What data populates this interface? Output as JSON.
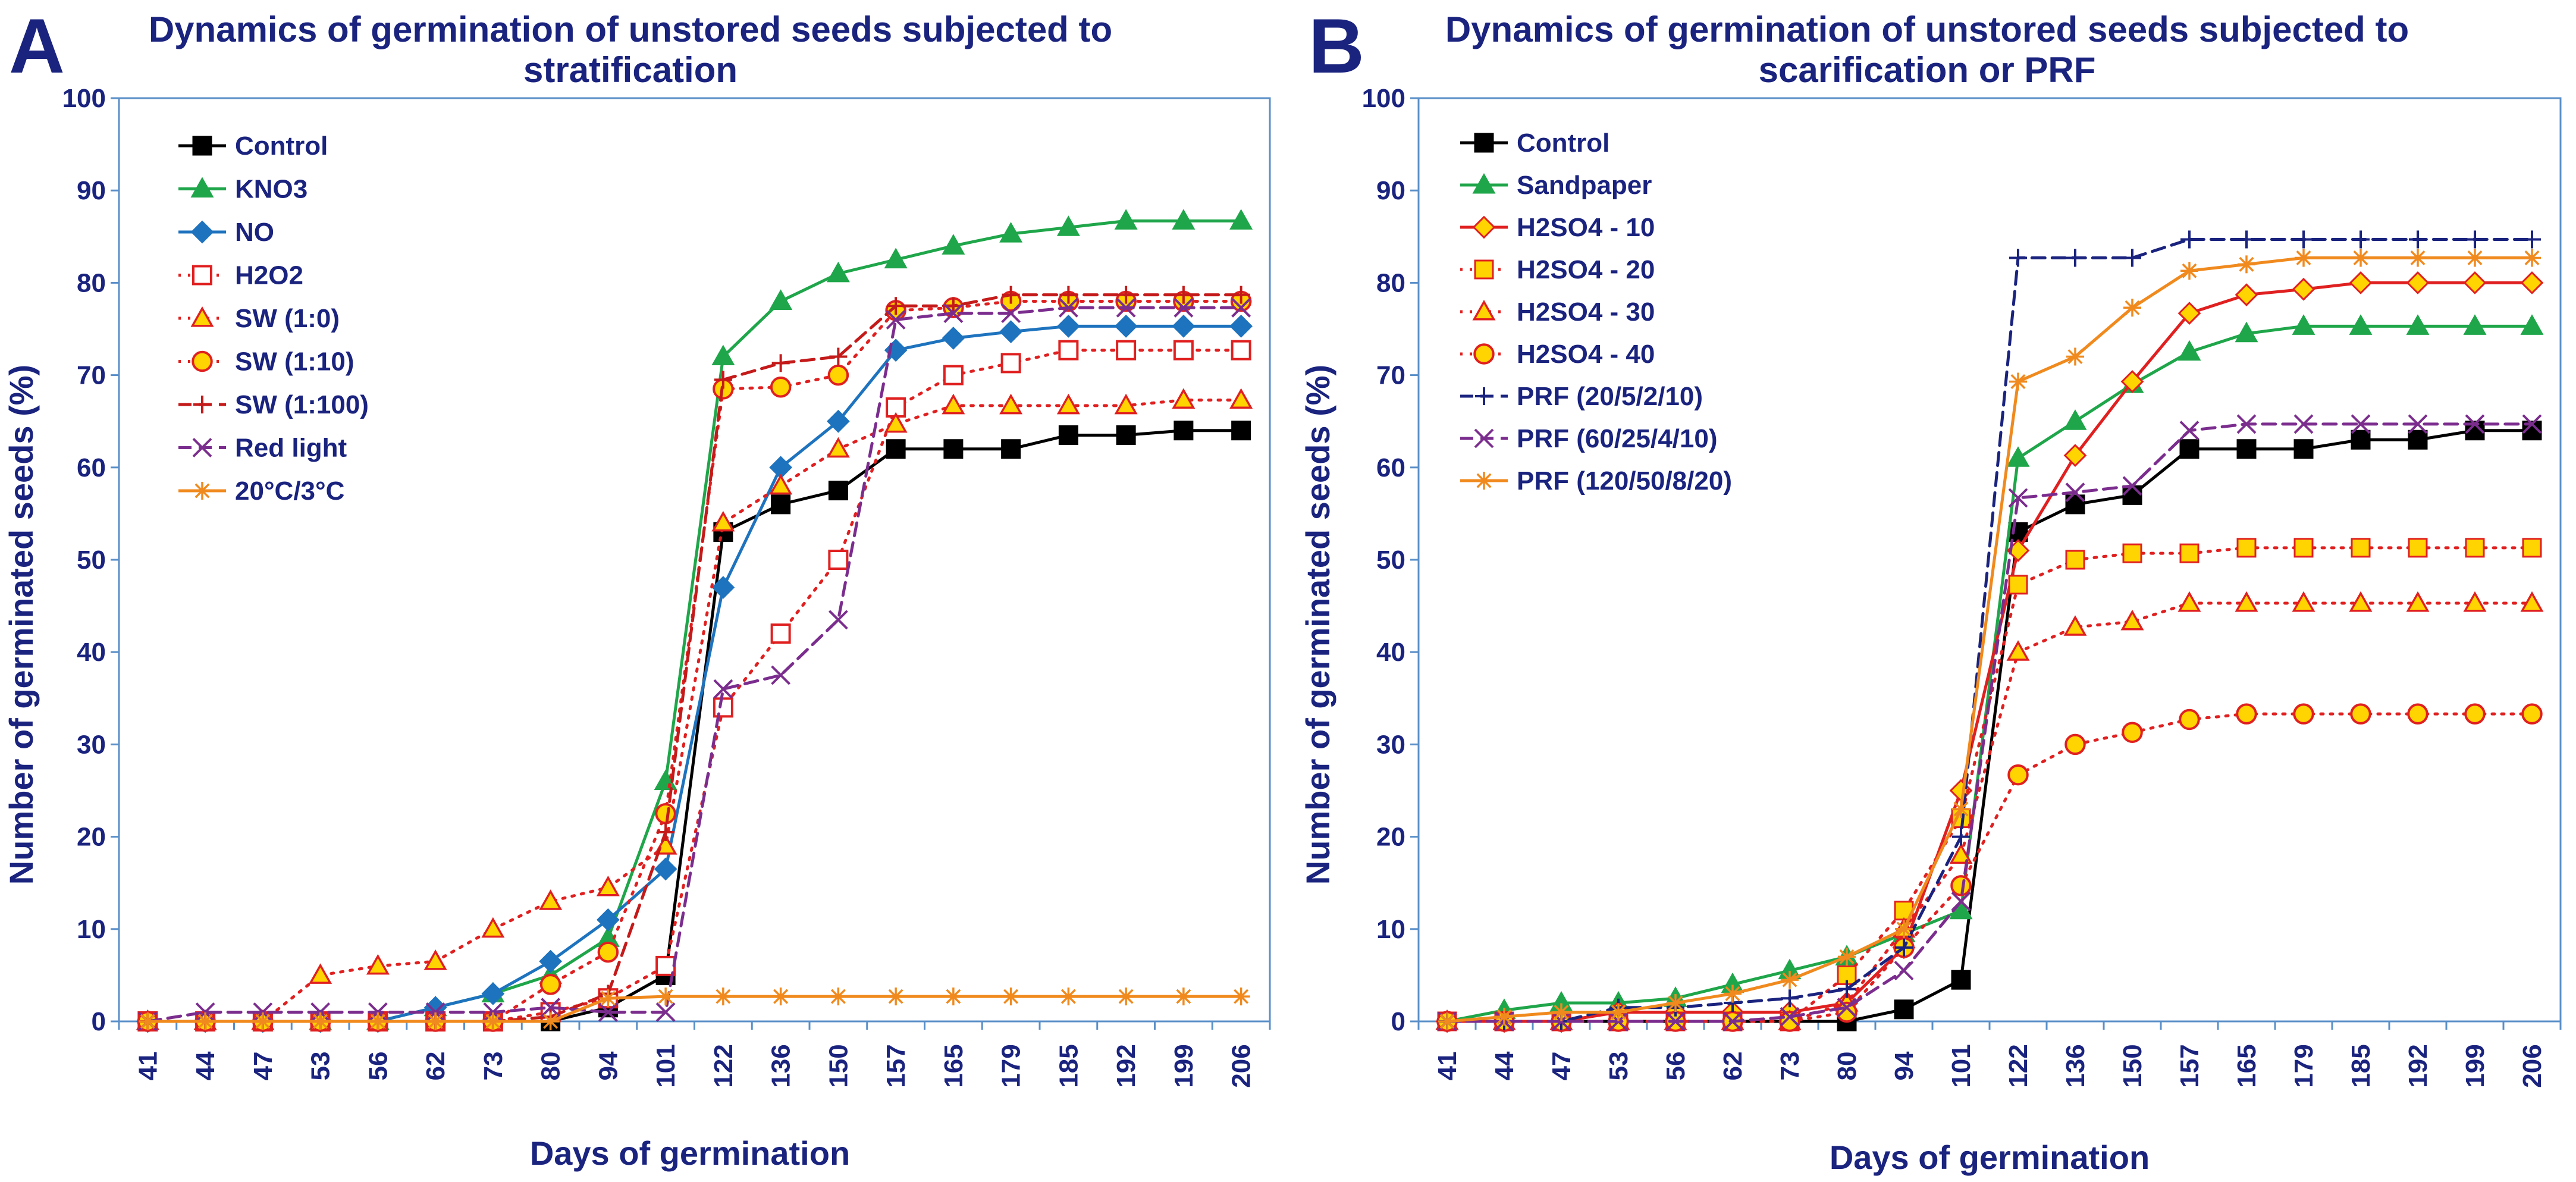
{
  "chart_data": [
    {
      "type": "line",
      "panel": "A",
      "title_lines": [
        "Dynamics of germination of unstored seeds subjected to",
        "stratification"
      ],
      "xlabel": "Days of germination",
      "ylabel": "Number of germinated seeds (%)",
      "ylim": [
        0,
        100
      ],
      "yticks": [
        "0",
        "10",
        "20",
        "30",
        "40",
        "50",
        "60",
        "70",
        "80",
        "90",
        "100"
      ],
      "categories": [
        "41",
        "44",
        "47",
        "53",
        "56",
        "62",
        "73",
        "80",
        "94",
        "101",
        "122",
        "136",
        "150",
        "157",
        "165",
        "179",
        "185",
        "192",
        "199",
        "206"
      ],
      "series": [
        {
          "name": "Control",
          "color": "#000000",
          "dash": "solid",
          "marker": "square",
          "fill": "#000000",
          "values": [
            0,
            0,
            0,
            0,
            0,
            0,
            0,
            0,
            1.5,
            5,
            53,
            56,
            57.5,
            62,
            62,
            62,
            63.5,
            63.5,
            64,
            64
          ]
        },
        {
          "name": "KNO3",
          "color": "#1fa64a",
          "dash": "solid",
          "marker": "triangle",
          "fill": "#1fa64a",
          "values": [
            0,
            0,
            0,
            0,
            0,
            1.5,
            3,
            5,
            9,
            26,
            72,
            78,
            81,
            82.5,
            84,
            85.3,
            86,
            86.7,
            86.7,
            86.7
          ]
        },
        {
          "name": "NO",
          "color": "#1e73be",
          "dash": "solid",
          "marker": "diamond",
          "fill": "#1e73be",
          "values": [
            0,
            0,
            0,
            0,
            0,
            1.5,
            3,
            6.5,
            11,
            16.5,
            47,
            60,
            65,
            72.7,
            74,
            74.7,
            75.3,
            75.3,
            75.3,
            75.3
          ]
        },
        {
          "name": "H2O2",
          "color": "#e02020",
          "dash": "dot",
          "marker": "square-open",
          "fill": "#ffffff",
          "values": [
            0,
            0,
            0,
            0,
            0,
            0,
            0,
            1,
            2.5,
            6,
            34,
            42,
            50,
            66.5,
            70,
            71.3,
            72.7,
            72.7,
            72.7,
            72.7
          ]
        },
        {
          "name": "SW (1:0)",
          "color": "#e02020",
          "dash": "dot",
          "marker": "triangle",
          "fill": "#ffd400",
          "values": [
            0,
            0,
            0,
            5,
            6,
            6.5,
            10,
            13,
            14.5,
            19,
            54,
            58,
            62,
            64.7,
            66.7,
            66.7,
            66.7,
            66.7,
            67.3,
            67.3
          ]
        },
        {
          "name": "SW (1:10)",
          "color": "#e02020",
          "dash": "dot",
          "marker": "circle",
          "fill": "#ffd400",
          "values": [
            0,
            0,
            0,
            0,
            0,
            0,
            0,
            4,
            7.5,
            22.5,
            68.5,
            68.7,
            70,
            77,
            77.3,
            78,
            78,
            78,
            78,
            78
          ]
        },
        {
          "name": "SW (1:100)",
          "color": "#c41a1a",
          "dash": "dash",
          "marker": "plus",
          "fill": "#ffd400",
          "values": [
            0,
            0,
            0,
            0,
            0,
            0,
            0,
            0.5,
            3,
            20.5,
            69.5,
            71.3,
            72,
            77.5,
            77.5,
            78.7,
            78.7,
            78.7,
            78.7,
            78.7
          ]
        },
        {
          "name": "Red light",
          "color": "#7b2d8e",
          "dash": "dash",
          "marker": "x",
          "fill": "#a070c0",
          "values": [
            0,
            1,
            1,
            1,
            1,
            1,
            1,
            1.5,
            1,
            1,
            36,
            37.5,
            43.5,
            76,
            76.7,
            76.7,
            77.3,
            77.3,
            77.3,
            77.3
          ]
        },
        {
          "name": "20°C/3°C",
          "color": "#f08a1e",
          "dash": "solid",
          "marker": "asterisk",
          "fill": "#f8b070",
          "values": [
            0,
            0,
            0,
            0,
            0,
            0,
            0,
            0,
            2.5,
            2.7,
            2.7,
            2.7,
            2.7,
            2.7,
            2.7,
            2.7,
            2.7,
            2.7,
            2.7,
            2.7
          ]
        }
      ]
    },
    {
      "type": "line",
      "panel": "B",
      "title_lines": [
        "Dynamics of germination of unstored seeds subjected to",
        "scarification or PRF"
      ],
      "xlabel": "Days of germination",
      "ylabel": "Number of germinated seeds (%)",
      "ylim": [
        0,
        100
      ],
      "yticks": [
        "0",
        "10",
        "20",
        "30",
        "40",
        "50",
        "60",
        "70",
        "80",
        "90",
        "100"
      ],
      "categories": [
        "41",
        "44",
        "47",
        "53",
        "56",
        "62",
        "73",
        "80",
        "94",
        "101",
        "122",
        "136",
        "150",
        "157",
        "165",
        "179",
        "185",
        "192",
        "199",
        "206"
      ],
      "series": [
        {
          "name": "Control",
          "color": "#000000",
          "dash": "solid",
          "marker": "square",
          "fill": "#000000",
          "values": [
            0,
            0,
            0,
            0,
            0,
            0,
            0,
            0,
            1.3,
            4.5,
            53,
            56,
            57,
            62,
            62,
            62,
            63,
            63,
            64,
            64
          ]
        },
        {
          "name": "Sandpaper",
          "color": "#1fa64a",
          "dash": "solid",
          "marker": "triangle",
          "fill": "#1fa64a",
          "values": [
            0,
            1.2,
            2,
            2,
            2.5,
            4,
            5.5,
            7,
            9.5,
            12,
            61,
            65,
            69,
            72.5,
            74.5,
            75.3,
            75.3,
            75.3,
            75.3,
            75.3
          ]
        },
        {
          "name": "H2SO4 - 10",
          "color": "#e02020",
          "dash": "solid",
          "marker": "diamond",
          "fill": "#ffd400",
          "values": [
            0,
            0,
            0,
            1,
            1,
            1,
            1,
            2,
            8,
            25,
            51,
            61.3,
            69.3,
            76.7,
            78.7,
            79.3,
            80,
            80,
            80,
            80
          ]
        },
        {
          "name": "H2SO4 - 20",
          "color": "#e02020",
          "dash": "dot",
          "marker": "square",
          "fill": "#ffd400",
          "values": [
            0,
            0,
            0,
            0,
            0,
            0,
            0,
            5,
            12,
            22,
            47.3,
            50,
            50.7,
            50.7,
            51.3,
            51.3,
            51.3,
            51.3,
            51.3,
            51.3
          ]
        },
        {
          "name": "H2SO4 - 30",
          "color": "#e02020",
          "dash": "dot",
          "marker": "triangle",
          "fill": "#ffd400",
          "values": [
            0,
            0,
            0,
            0,
            0,
            0,
            0,
            2,
            10,
            18,
            40,
            42.7,
            43.3,
            45.3,
            45.3,
            45.3,
            45.3,
            45.3,
            45.3,
            45.3
          ]
        },
        {
          "name": "H2SO4 - 40",
          "color": "#e02020",
          "dash": "dot",
          "marker": "circle",
          "fill": "#ffd400",
          "values": [
            0,
            0,
            0,
            0,
            0,
            0,
            0,
            1,
            8,
            14.7,
            26.7,
            30,
            31.3,
            32.7,
            33.3,
            33.3,
            33.3,
            33.3,
            33.3,
            33.3
          ]
        },
        {
          "name": "PRF (20/5/2/10)",
          "color": "#1a237e",
          "dash": "dash",
          "marker": "plus",
          "fill": "#1a237e",
          "values": [
            0,
            0,
            0,
            1.5,
            1.5,
            2,
            2.5,
            3.5,
            8,
            20,
            82.7,
            82.7,
            82.7,
            84.7,
            84.7,
            84.7,
            84.7,
            84.7,
            84.7,
            84.7
          ]
        },
        {
          "name": "PRF (60/25/4/10)",
          "color": "#7b2d8e",
          "dash": "dash",
          "marker": "x",
          "fill": "#a070c0",
          "values": [
            0,
            0,
            0,
            0,
            0,
            0,
            0.5,
            1.5,
            5.5,
            13,
            56.7,
            57.3,
            58,
            64,
            64.7,
            64.7,
            64.7,
            64.7,
            64.7,
            64.7
          ]
        },
        {
          "name": "PRF (120/50/8/20)",
          "color": "#f08a1e",
          "dash": "solid",
          "marker": "asterisk",
          "fill": "#f8b070",
          "values": [
            0,
            0.5,
            1,
            1,
            2,
            3,
            4.5,
            7,
            10,
            23,
            69.3,
            72,
            77.3,
            81.3,
            82,
            82.7,
            82.7,
            82.7,
            82.7,
            82.7
          ]
        }
      ]
    }
  ]
}
